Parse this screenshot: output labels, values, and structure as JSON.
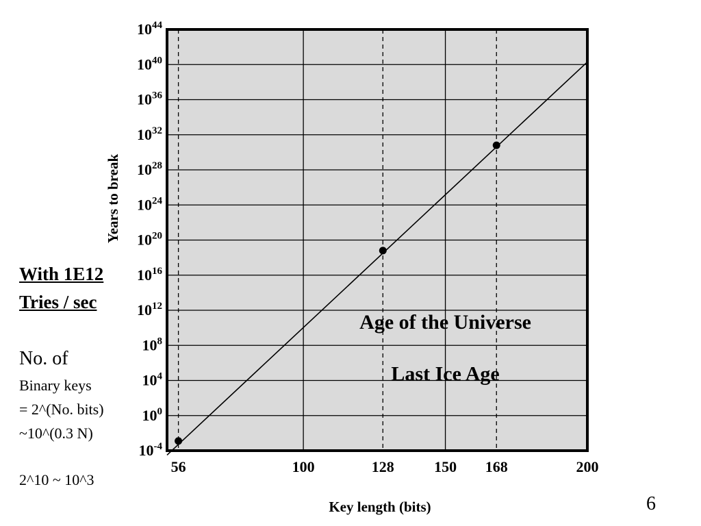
{
  "chart_data": {
    "type": "line",
    "xlabel": "Key length (bits)",
    "ylabel": "Years to break",
    "x_ticks": [
      56,
      100,
      128,
      150,
      168,
      200
    ],
    "y_tick_exponents": [
      -4,
      0,
      4,
      8,
      12,
      16,
      20,
      24,
      28,
      32,
      36,
      40,
      44
    ],
    "y_scale": "log10",
    "xlim": [
      52,
      200
    ],
    "ylim_exponent": [
      -4,
      44
    ],
    "grid": true,
    "series": [
      {
        "x": [
          52,
          200
        ],
        "y_exponent": [
          -4.5,
          40.3
        ]
      }
    ],
    "points": [
      {
        "x": 56,
        "y_exponent": -2.9
      },
      {
        "x": 128,
        "y_exponent": 18.8
      },
      {
        "x": 168,
        "y_exponent": 30.8
      }
    ],
    "dashed_x": [
      56,
      128,
      168
    ],
    "annotations": [
      {
        "text": "Age of the Universe",
        "x": 150,
        "y_exponent": 9.9
      },
      {
        "text": "Last Ice Age",
        "x": 150,
        "y_exponent": 4.0
      }
    ]
  },
  "sidebar": {
    "heading_line1": "With 1E12",
    "heading_line2": "Tries / sec",
    "line1": "No. of",
    "line2": "Binary keys",
    "line3": "= 2^(No. bits)",
    "line4": "~10^(0.3 N)",
    "line5": "2^10 ~ 10^3"
  },
  "page_number": "6"
}
